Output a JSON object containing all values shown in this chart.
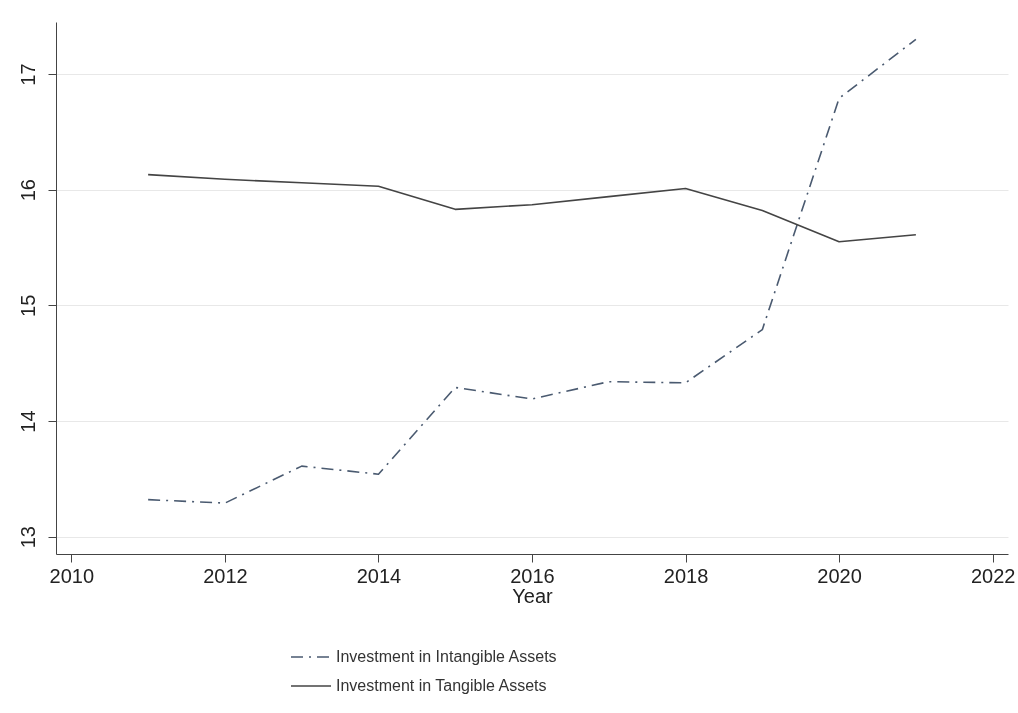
{
  "chart_data": {
    "type": "line",
    "xlabel": "Year",
    "x": [
      2011,
      2012,
      2013,
      2014,
      2015,
      2016,
      2017,
      2018,
      2019,
      2020,
      2021
    ],
    "series": [
      {
        "name": "Investment in Intangible Assets",
        "color": "#4a5a70",
        "line_style": "dashdot",
        "values": [
          13.32,
          13.29,
          13.61,
          13.54,
          14.29,
          14.19,
          14.34,
          14.33,
          14.79,
          16.79,
          17.3
        ]
      },
      {
        "name": "Investment in Tangible Assets",
        "color": "#444444",
        "line_style": "solid",
        "values": [
          16.13,
          16.09,
          16.06,
          16.03,
          15.83,
          15.87,
          15.94,
          16.01,
          15.82,
          15.55,
          15.61
        ]
      }
    ],
    "xlim": [
      2009.8,
      2022.2
    ],
    "xticks": [
      2010,
      2012,
      2014,
      2016,
      2018,
      2020,
      2022
    ],
    "ylim": [
      12.85,
      17.45
    ],
    "yticks": [
      13,
      14,
      15,
      16,
      17
    ],
    "grid": "y",
    "legend": "bottom",
    "marker": "none"
  }
}
